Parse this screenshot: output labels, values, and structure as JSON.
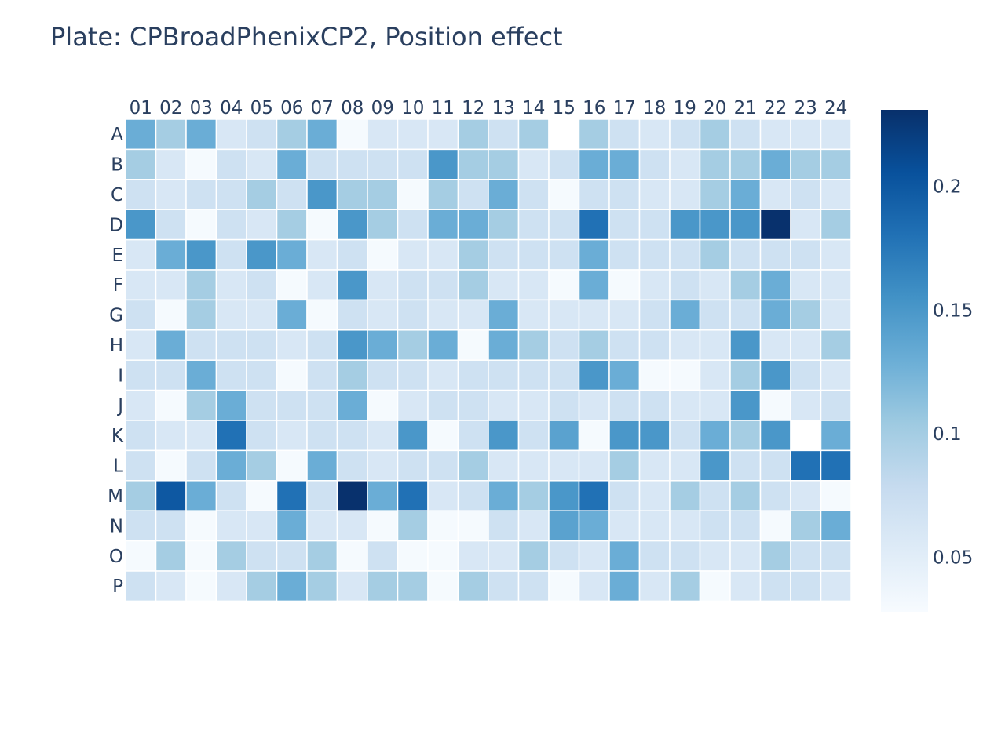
{
  "chart_data": {
    "type": "heatmap",
    "title": "Plate: CPBroadPhenixCP2, Position effect",
    "columns": [
      "01",
      "02",
      "03",
      "04",
      "05",
      "06",
      "07",
      "08",
      "09",
      "10",
      "11",
      "12",
      "13",
      "14",
      "15",
      "16",
      "17",
      "18",
      "19",
      "20",
      "21",
      "22",
      "23",
      "24"
    ],
    "rows": [
      "A",
      "B",
      "C",
      "D",
      "E",
      "F",
      "G",
      "H",
      "I",
      "J",
      "K",
      "L",
      "M",
      "N",
      "O",
      "P"
    ],
    "values": [
      [
        0.13,
        0.1,
        0.13,
        0.06,
        0.07,
        0.1,
        0.13,
        0.03,
        0.06,
        0.06,
        0.06,
        0.1,
        0.07,
        0.1,
        null,
        0.1,
        0.07,
        0.06,
        0.07,
        0.1,
        0.07,
        0.06,
        0.06,
        0.06
      ],
      [
        0.1,
        0.06,
        0.03,
        0.07,
        0.06,
        0.13,
        0.07,
        0.07,
        0.07,
        0.07,
        0.15,
        0.1,
        0.1,
        0.06,
        0.07,
        0.13,
        0.13,
        0.07,
        0.06,
        0.1,
        0.1,
        0.13,
        0.1,
        0.1
      ],
      [
        0.07,
        0.06,
        0.07,
        0.07,
        0.1,
        0.07,
        0.15,
        0.1,
        0.1,
        0.03,
        0.1,
        0.07,
        0.13,
        0.07,
        0.03,
        0.07,
        0.07,
        0.06,
        0.06,
        0.1,
        0.13,
        0.06,
        0.07,
        0.06
      ],
      [
        0.15,
        0.07,
        0.03,
        0.07,
        0.06,
        0.1,
        0.03,
        0.15,
        0.1,
        0.07,
        0.13,
        0.13,
        0.1,
        0.07,
        0.07,
        0.18,
        0.07,
        0.07,
        0.15,
        0.15,
        0.15,
        0.23,
        0.06,
        0.1
      ],
      [
        0.06,
        0.13,
        0.15,
        0.07,
        0.15,
        0.13,
        0.06,
        0.07,
        0.03,
        0.06,
        0.06,
        0.1,
        0.07,
        0.07,
        0.07,
        0.13,
        0.07,
        0.07,
        0.07,
        0.1,
        0.07,
        0.07,
        0.07,
        0.06
      ],
      [
        0.06,
        0.06,
        0.1,
        0.06,
        0.07,
        0.03,
        0.06,
        0.15,
        0.06,
        0.07,
        0.07,
        0.1,
        0.06,
        0.06,
        0.03,
        0.13,
        0.03,
        0.06,
        0.07,
        0.06,
        0.1,
        0.13,
        0.06,
        0.06
      ],
      [
        0.07,
        0.03,
        0.1,
        0.06,
        0.06,
        0.13,
        0.03,
        0.07,
        0.06,
        0.07,
        0.06,
        0.06,
        0.13,
        0.06,
        0.06,
        0.06,
        0.06,
        0.07,
        0.13,
        0.07,
        0.07,
        0.13,
        0.1,
        0.06
      ],
      [
        0.06,
        0.13,
        0.07,
        0.07,
        0.07,
        0.06,
        0.07,
        0.15,
        0.13,
        0.1,
        0.13,
        0.03,
        0.13,
        0.1,
        0.07,
        0.1,
        0.07,
        0.07,
        0.06,
        0.06,
        0.15,
        0.06,
        0.06,
        0.1
      ],
      [
        0.07,
        0.07,
        0.13,
        0.07,
        0.07,
        0.03,
        0.07,
        0.1,
        0.07,
        0.07,
        0.06,
        0.07,
        0.07,
        0.07,
        0.07,
        0.15,
        0.13,
        0.03,
        0.03,
        0.06,
        0.1,
        0.15,
        0.07,
        0.06
      ],
      [
        0.06,
        0.03,
        0.1,
        0.13,
        0.07,
        0.07,
        0.07,
        0.13,
        0.03,
        0.06,
        0.07,
        0.07,
        0.06,
        0.06,
        0.07,
        0.06,
        0.07,
        0.07,
        0.06,
        0.06,
        0.15,
        0.03,
        0.06,
        0.07
      ],
      [
        0.07,
        0.06,
        0.06,
        0.18,
        0.07,
        0.06,
        0.07,
        0.07,
        0.06,
        0.15,
        0.03,
        0.07,
        0.15,
        0.07,
        0.14,
        0.03,
        0.15,
        0.15,
        0.07,
        0.13,
        0.1,
        0.15,
        null,
        0.13
      ],
      [
        0.07,
        0.03,
        0.07,
        0.13,
        0.1,
        0.03,
        0.13,
        0.07,
        0.06,
        0.07,
        0.07,
        0.1,
        0.06,
        0.06,
        0.06,
        0.06,
        0.1,
        0.06,
        0.06,
        0.15,
        0.07,
        0.07,
        0.18,
        0.18
      ],
      [
        0.1,
        0.2,
        0.13,
        0.07,
        0.03,
        0.18,
        0.07,
        0.23,
        0.13,
        0.18,
        0.06,
        0.07,
        0.13,
        0.1,
        0.15,
        0.18,
        0.07,
        0.06,
        0.1,
        0.07,
        0.1,
        0.07,
        0.06,
        0.03
      ],
      [
        0.07,
        0.07,
        0.03,
        0.06,
        0.06,
        0.13,
        0.06,
        0.06,
        0.03,
        0.1,
        0.03,
        0.03,
        0.07,
        0.06,
        0.14,
        0.13,
        0.06,
        0.06,
        0.06,
        0.07,
        0.07,
        0.03,
        0.1,
        0.13
      ],
      [
        0.03,
        0.1,
        0.03,
        0.1,
        0.07,
        0.07,
        0.1,
        0.03,
        0.07,
        0.03,
        0.03,
        0.06,
        0.06,
        0.1,
        0.07,
        0.06,
        0.13,
        0.07,
        0.07,
        0.06,
        0.06,
        0.1,
        0.07,
        0.07
      ],
      [
        0.07,
        0.06,
        0.03,
        0.06,
        0.1,
        0.13,
        0.1,
        0.06,
        0.1,
        0.1,
        0.03,
        0.1,
        0.07,
        0.07,
        0.03,
        0.06,
        0.13,
        0.06,
        0.1,
        0.03,
        0.06,
        0.07,
        0.07,
        0.06
      ]
    ],
    "colorscale": "Blues",
    "zmin": 0.028,
    "zmax": 0.231,
    "colorbar_ticks": [
      0.05,
      0.1,
      0.15,
      0.2
    ],
    "colorbar_tick_labels": [
      "0.05",
      "0.1",
      "0.15",
      "0.2"
    ],
    "xaxis_side": "top",
    "yaxis_reversed": true
  }
}
